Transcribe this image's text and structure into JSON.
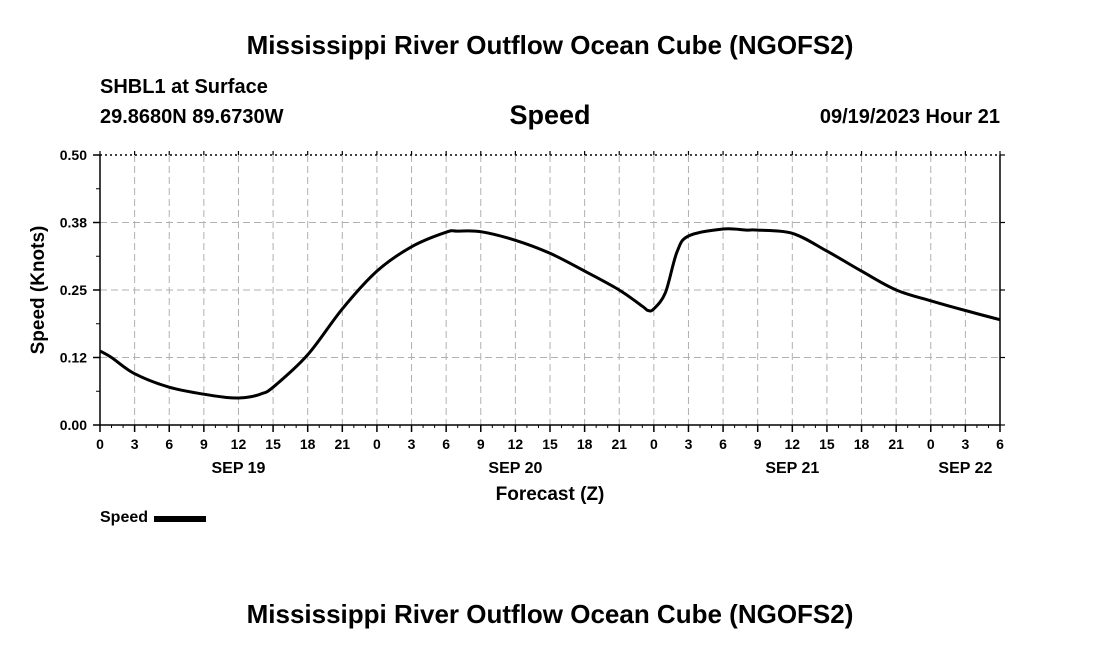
{
  "header": {
    "title": "Mississippi River Outflow Ocean Cube (NGOFS2)",
    "station": "SHBL1 at Surface",
    "coords": "29.8680N  89.6730W",
    "subtitle": "Speed",
    "datetime": "09/19/2023 Hour 21"
  },
  "footer": {
    "title": "Mississippi River Outflow Ocean Cube (NGOFS2)"
  },
  "legend": {
    "label": "Speed"
  },
  "chart_data": {
    "type": "line",
    "title": "Speed",
    "xlabel": "Forecast (Z)",
    "ylabel": "Speed (Knots)",
    "xlim": [
      0,
      78
    ],
    "ylim": [
      0,
      0.5
    ],
    "yticks": [
      0.0,
      0.125,
      0.25,
      0.375,
      0.5
    ],
    "ytick_labels": [
      "0.00",
      "0.12",
      "0.25",
      "0.38",
      "0.50"
    ],
    "xticks": [
      0,
      3,
      6,
      9,
      12,
      15,
      18,
      21,
      24,
      27,
      30,
      33,
      36,
      39,
      42,
      45,
      48,
      51,
      54,
      57,
      60,
      63,
      66,
      69,
      72,
      75,
      78
    ],
    "xtick_labels": [
      "0",
      "3",
      "6",
      "9",
      "12",
      "15",
      "18",
      "21",
      "0",
      "3",
      "6",
      "9",
      "12",
      "15",
      "18",
      "21",
      "0",
      "3",
      "6",
      "9",
      "12",
      "15",
      "18",
      "21",
      "0",
      "3",
      "6"
    ],
    "date_labels": [
      {
        "x": 12,
        "label": "SEP 19"
      },
      {
        "x": 36,
        "label": "SEP 20"
      },
      {
        "x": 60,
        "label": "SEP 21"
      },
      {
        "x": 75,
        "label": "SEP 22"
      }
    ],
    "grid": true,
    "legend_position": "bottom-left",
    "series": [
      {
        "name": "Speed",
        "color": "#000000",
        "x": [
          0,
          1,
          3,
          6,
          9,
          11,
          12,
          13,
          14,
          15,
          18,
          21,
          24,
          27,
          30,
          31,
          33,
          36,
          39,
          42,
          45,
          47,
          47.5,
          48,
          49,
          50,
          51,
          54,
          56,
          57,
          60,
          63,
          66,
          69,
          72,
          75,
          78
        ],
        "values": [
          0.137,
          0.125,
          0.095,
          0.07,
          0.057,
          0.051,
          0.05,
          0.052,
          0.058,
          0.07,
          0.13,
          0.215,
          0.285,
          0.33,
          0.357,
          0.359,
          0.358,
          0.342,
          0.318,
          0.285,
          0.25,
          0.22,
          0.212,
          0.215,
          0.245,
          0.32,
          0.35,
          0.363,
          0.361,
          0.361,
          0.355,
          0.322,
          0.285,
          0.25,
          0.23,
          0.212,
          0.195
        ]
      }
    ]
  }
}
